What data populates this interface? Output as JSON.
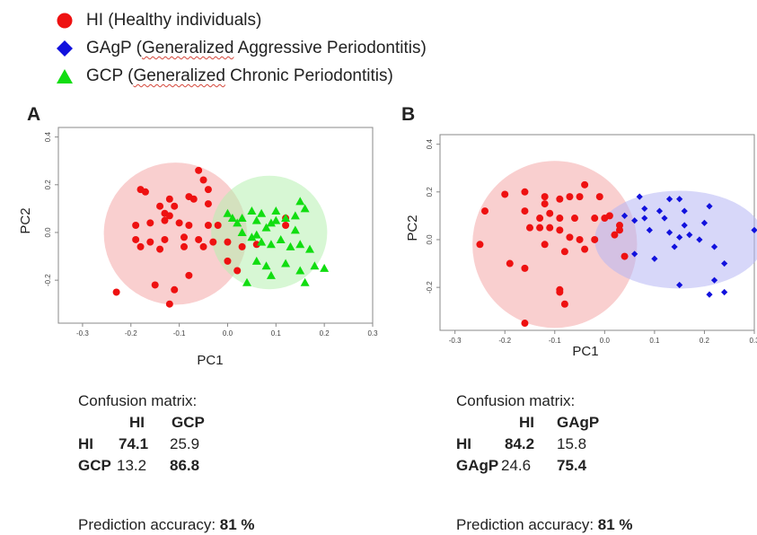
{
  "legend": [
    {
      "label": "HI (Healthy individuals)",
      "marker": "circle",
      "color": "#ee1111"
    },
    {
      "label_pre": "GAgP (",
      "label_sq": "Generalized",
      "label_post": " Aggressive Periodontitis)",
      "marker": "diamond",
      "color": "#1111dd"
    },
    {
      "label_pre": "GCP (",
      "label_sq": "Generalized",
      "label_post": " Chronic Periodontitis)",
      "marker": "triangle",
      "color": "#11dd11"
    }
  ],
  "panels": [
    {
      "letter": "A",
      "cm_caption": "Confusion matrix:",
      "cm_cols": [
        "HI",
        "GCP"
      ],
      "cm_rows": [
        {
          "label": "HI",
          "v1": "74.1",
          "v2": "25.9"
        },
        {
          "label": "GCP",
          "v1": "13.2",
          "v2": "86.8"
        }
      ],
      "accuracy_label": "Prediction accuracy: ",
      "accuracy_value": "81 %"
    },
    {
      "letter": "B",
      "cm_caption": "Confusion matrix:",
      "cm_cols": [
        "HI",
        "GAgP"
      ],
      "cm_rows": [
        {
          "label": "HI",
          "v1": "84.2",
          "v2": "15.8"
        },
        {
          "label": "GAgP",
          "v1": "24.6",
          "v2": "75.4"
        }
      ],
      "accuracy_label": "Prediction accuracy: ",
      "accuracy_value": "81 %"
    }
  ],
  "chart_data": [
    {
      "type": "scatter",
      "title": "",
      "xlabel": "PC1",
      "ylabel": "PC2",
      "xlim": [
        -0.35,
        0.3
      ],
      "ylim": [
        -0.38,
        0.44
      ],
      "xticks": [
        "-0.3",
        "-0.2",
        "-0.1",
        "0.0",
        "0.1",
        "0.2",
        "0.3"
      ],
      "yticks": [
        "-0.2",
        "0.0",
        "0.2",
        "0.4"
      ],
      "ellipses": [
        {
          "series": "HI",
          "color": "#f4a8a8",
          "cx": -0.108,
          "cy": -0.005,
          "rx": 0.148,
          "ry": 0.298,
          "angle": 0
        },
        {
          "series": "GCP",
          "color": "#b6f0b0",
          "cx": 0.086,
          "cy": 0.0,
          "rx": 0.12,
          "ry": 0.238,
          "angle": 0
        }
      ],
      "series": [
        {
          "name": "HI",
          "marker": "circle",
          "color": "#ee1111",
          "x": [
            -0.06,
            -0.05,
            -0.04,
            -0.18,
            -0.17,
            -0.12,
            -0.08,
            -0.07,
            -0.04,
            -0.14,
            -0.11,
            -0.13,
            -0.12,
            -0.19,
            -0.16,
            -0.13,
            -0.1,
            -0.08,
            -0.04,
            -0.02,
            -0.13,
            -0.09,
            -0.06,
            -0.19,
            -0.18,
            -0.16,
            -0.14,
            -0.09,
            -0.05,
            -0.03,
            0.0,
            0.03,
            0.0,
            0.02,
            -0.15,
            -0.08,
            -0.11,
            -0.23,
            0.12,
            0.12,
            -0.12,
            0.06
          ],
          "y": [
            0.26,
            0.22,
            0.18,
            0.18,
            0.17,
            0.14,
            0.15,
            0.14,
            0.12,
            0.11,
            0.11,
            0.08,
            0.07,
            0.03,
            0.04,
            0.05,
            0.04,
            0.03,
            0.03,
            0.03,
            -0.03,
            -0.02,
            -0.03,
            -0.03,
            -0.06,
            -0.04,
            -0.07,
            -0.06,
            -0.06,
            -0.04,
            -0.04,
            -0.06,
            -0.12,
            -0.16,
            -0.22,
            -0.18,
            -0.24,
            -0.25,
            0.06,
            0.03,
            -0.3,
            -0.05
          ]
        },
        {
          "name": "GCP",
          "marker": "triangle",
          "color": "#11dd11",
          "x": [
            0.0,
            0.01,
            0.02,
            0.03,
            0.05,
            0.06,
            0.07,
            0.08,
            0.09,
            0.1,
            0.12,
            0.14,
            0.15,
            0.16,
            0.03,
            0.05,
            0.06,
            0.07,
            0.09,
            0.11,
            0.13,
            0.15,
            0.17,
            0.06,
            0.08,
            0.12,
            0.15,
            0.18,
            0.2,
            0.04,
            0.09,
            0.16,
            0.1,
            0.14
          ],
          "y": [
            0.08,
            0.06,
            0.04,
            0.06,
            0.09,
            0.05,
            0.08,
            0.02,
            0.04,
            0.05,
            0.06,
            0.07,
            0.13,
            0.1,
            0.0,
            -0.02,
            -0.01,
            -0.04,
            -0.05,
            -0.03,
            -0.06,
            -0.05,
            -0.07,
            -0.12,
            -0.14,
            -0.13,
            -0.16,
            -0.14,
            -0.15,
            -0.21,
            -0.18,
            -0.21,
            0.09,
            0.01
          ]
        }
      ]
    },
    {
      "type": "scatter",
      "title": "",
      "xlabel": "PC1",
      "ylabel": "PC2",
      "xlim": [
        -0.33,
        0.3
      ],
      "ylim": [
        -0.38,
        0.44
      ],
      "xticks": [
        "-0.3",
        "-0.2",
        "-0.1",
        "0.0",
        "0.1",
        "0.2",
        "0.3"
      ],
      "yticks": [
        "-0.2",
        "0.0",
        "0.2",
        "0.4"
      ],
      "ellipses": [
        {
          "series": "HI",
          "color": "#f4a8a8",
          "cx": -0.1,
          "cy": -0.02,
          "rx": 0.165,
          "ry": 0.35,
          "angle": 0
        },
        {
          "series": "GAgP",
          "color": "#b7b7f4",
          "cx": 0.15,
          "cy": 0.0,
          "rx": 0.17,
          "ry": 0.205,
          "angle": 0
        }
      ],
      "series": [
        {
          "name": "HI",
          "marker": "circle",
          "color": "#ee1111",
          "x": [
            -0.2,
            -0.16,
            -0.12,
            -0.12,
            -0.09,
            -0.07,
            -0.05,
            -0.04,
            -0.01,
            -0.24,
            -0.16,
            -0.13,
            -0.11,
            -0.09,
            -0.06,
            -0.02,
            0.0,
            0.01,
            -0.15,
            -0.13,
            -0.11,
            -0.09,
            -0.07,
            -0.05,
            -0.02,
            0.02,
            0.03,
            -0.25,
            -0.12,
            -0.08,
            -0.04,
            -0.19,
            -0.16,
            -0.09,
            -0.09,
            -0.16,
            -0.08,
            0.04,
            0.03
          ],
          "y": [
            0.19,
            0.2,
            0.18,
            0.15,
            0.17,
            0.18,
            0.18,
            0.23,
            0.18,
            0.12,
            0.12,
            0.09,
            0.11,
            0.09,
            0.09,
            0.09,
            0.09,
            0.1,
            0.05,
            0.05,
            0.05,
            0.04,
            0.01,
            0.0,
            0.0,
            0.02,
            0.06,
            -0.02,
            -0.02,
            -0.05,
            -0.04,
            -0.1,
            -0.12,
            -0.22,
            -0.21,
            -0.35,
            -0.27,
            -0.07,
            0.04
          ]
        },
        {
          "name": "GAgP",
          "marker": "diamond",
          "color": "#1111dd",
          "x": [
            0.07,
            0.08,
            0.11,
            0.13,
            0.15,
            0.16,
            0.21,
            0.06,
            0.08,
            0.12,
            0.16,
            0.2,
            0.09,
            0.13,
            0.15,
            0.17,
            0.19,
            0.14,
            0.22,
            0.24,
            0.3,
            0.06,
            0.1,
            0.15,
            0.22,
            0.24,
            0.21,
            0.04
          ],
          "y": [
            0.18,
            0.13,
            0.12,
            0.17,
            0.17,
            0.12,
            0.14,
            0.08,
            0.09,
            0.09,
            0.06,
            0.07,
            0.04,
            0.03,
            0.01,
            0.02,
            0.0,
            -0.03,
            -0.03,
            -0.1,
            0.04,
            -0.06,
            -0.08,
            -0.19,
            -0.17,
            -0.22,
            -0.23,
            0.1
          ]
        }
      ]
    }
  ]
}
